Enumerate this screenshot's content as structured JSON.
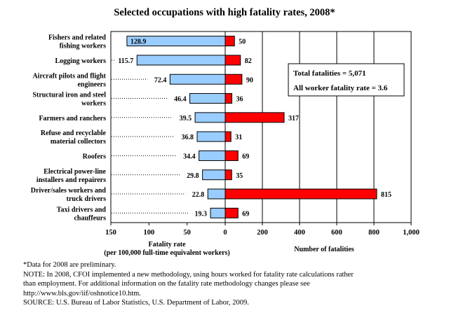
{
  "chart_data": {
    "type": "bar",
    "title": "Selected occupations with high fatality rates, 2008*",
    "categories": [
      "Fishers and related|fishing workers",
      "Logging workers",
      "Aircraft pilots and flight|engineers",
      "Structural iron and steel|workers",
      "Farmers and ranchers",
      "Refuse and recyclable|material collectors",
      "Roofers",
      "Electrical power-line|installers and repairers",
      "Driver/sales workers and|truck drivers",
      "Taxi drivers and|chauffeurs"
    ],
    "series": [
      {
        "values": [
          128.9,
          115.7,
          72.4,
          46.4,
          39.5,
          36.8,
          34.4,
          29.8,
          22.8,
          19.3
        ]
      },
      {
        "values": [
          50,
          82,
          90,
          36,
          317,
          31,
          69,
          35,
          815,
          69
        ]
      }
    ],
    "rate_axis": {
      "label_line1": "Fatality rate",
      "label_line2": "(per 100,000 full-time equivalent workers)",
      "range": [
        150,
        0
      ],
      "ticks": [
        "150",
        "100",
        "50",
        "0"
      ]
    },
    "count_axis": {
      "label": "Number of fatalities",
      "range": [
        0,
        1000
      ],
      "ticks": [
        "0",
        "200",
        "400",
        "600",
        "800",
        "1,000"
      ]
    },
    "annotations": [
      "Total fatalities = 5,071",
      "All worker fatality rate = 3.6"
    ],
    "colors": {
      "rate": "#99CCFF",
      "count": "#FF0000"
    },
    "grid": "vertical"
  },
  "notes": [
    "*Data for 2008 are preliminary.",
    "NOTE: In 2008, CFOI implemented a new methodology, using hours worked for fatality rate calculations rather",
    "than employment.  For additional information on the fatality rate methodology changes please see",
    "http://www.bls.gov/iif/oshnotice10.htm.",
    "SOURCE:  U.S. Bureau of Labor Statistics, U.S. Department of Labor, 2009."
  ]
}
